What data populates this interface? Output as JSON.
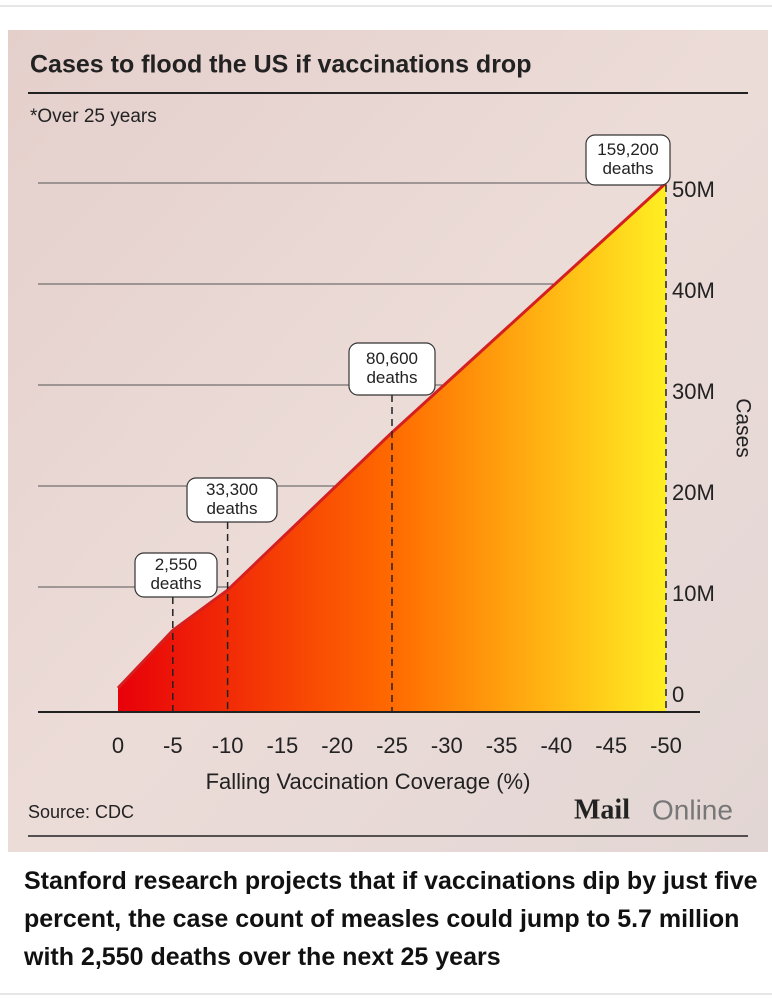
{
  "chart_data": {
    "type": "area",
    "title": "Cases to flood the US if vaccinations drop",
    "subtitle": "*Over 25 years",
    "x_label": "Falling Vaccination Coverage (%)",
    "y_label": "Cases",
    "x": [
      0,
      -5,
      -10,
      -25,
      -50
    ],
    "values": [
      0,
      5700000,
      9700000,
      25300000,
      50000000
    ],
    "line_color": "#d42020",
    "colors": [
      "#e8000a",
      "#ff6a00",
      "#ffee22"
    ],
    "xlim": [
      0,
      -50
    ],
    "xticks": [
      0,
      -5,
      -10,
      -15,
      -20,
      -25,
      -30,
      -35,
      -40,
      -45,
      -50
    ],
    "ylim": [
      0,
      50000000
    ],
    "yticks": [
      {
        "value": 0,
        "label": "0"
      },
      {
        "value": 10000000,
        "label": "10M"
      },
      {
        "value": 20000000,
        "label": "20M"
      },
      {
        "value": 30000000,
        "label": "30M"
      },
      {
        "value": 40000000,
        "label": "40M"
      },
      {
        "value": 50000000,
        "label": "50M"
      }
    ],
    "grid": true,
    "annotations": [
      {
        "x": -5,
        "lines": [
          "2,550",
          "deaths"
        ]
      },
      {
        "x": -10,
        "lines": [
          "33,300",
          "deaths"
        ]
      },
      {
        "x": -25,
        "lines": [
          "80,600",
          "deaths"
        ]
      },
      {
        "x": -50,
        "lines": [
          "159,200",
          "deaths"
        ]
      }
    ],
    "source": "Source: CDC",
    "brand": [
      "Mail",
      "Online"
    ]
  },
  "caption": "Stanford research projects that if vaccinations dip by just five percent, the case count of measles could jump to 5.7 million with 2,550 deaths over the next 25 years"
}
